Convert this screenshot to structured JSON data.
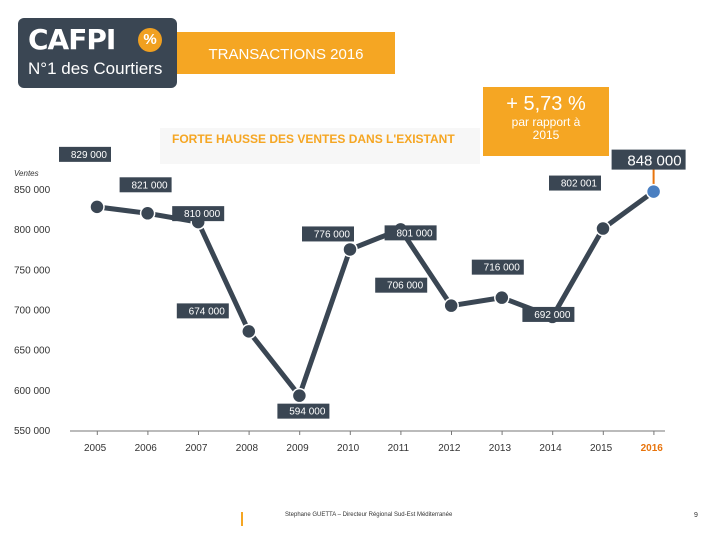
{
  "logo": {
    "brand": "CAFPI",
    "badge": "%",
    "tagline": "N°1 des Courtiers"
  },
  "title": "TRANSACTIONS 2016",
  "headline": "FORTE HAUSSE DES VENTES DANS L'EXISTANT",
  "highlight": {
    "value": "+ 5,73 %",
    "subtitle": "par rapport à 2015"
  },
  "footer": {
    "credit": "Stephane GUETTA – Directeur Régional Sud-Est Méditerranée",
    "page": "9"
  },
  "colors": {
    "accent": "#f5a623",
    "line": "#3a4653",
    "point": "#3a4653",
    "highlight_point": "#4a7fc1",
    "highlight_year": "#e8740c"
  },
  "chart_data": {
    "type": "line",
    "title": "",
    "xlabel": "",
    "ylabel": "Ventes",
    "ylim": [
      550000,
      850000
    ],
    "yticks": [
      "850 000",
      "800 000",
      "750 000",
      "700 000",
      "650 000",
      "600 000",
      "550 000"
    ],
    "categories": [
      "2005",
      "2006",
      "2007",
      "2008",
      "2009",
      "2010",
      "2011",
      "2012",
      "2013",
      "2014",
      "2015",
      "2016"
    ],
    "highlight_category": "2016",
    "series": [
      {
        "values": [
          829000,
          821000,
          810000,
          674000,
          594000,
          776000,
          801000,
          706000,
          716000,
          692000,
          802001,
          848000
        ]
      }
    ],
    "data_labels": [
      "829 000",
      "821 000",
      "810 000",
      "674 000",
      "594 000",
      "776 000",
      "801 000",
      "706 000",
      "716 000",
      "692 000",
      "802 001",
      "848 000"
    ],
    "grid": false,
    "legend": "none"
  }
}
